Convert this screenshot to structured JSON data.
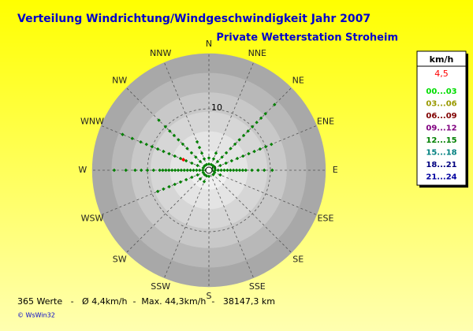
{
  "chart_data": {
    "type": "polar-scatter",
    "title": "Verteilung Windrichtung/Windgeschwindigkeit  Jahr 2007",
    "subtitle": "Private Wetterstation Stroheim",
    "categories": [
      "N",
      "NNE",
      "NE",
      "ENE",
      "E",
      "ESE",
      "SE",
      "SSE",
      "S",
      "SSW",
      "SW",
      "WSW",
      "W",
      "WNW",
      "NW",
      "NNW"
    ],
    "rlim": [
      0,
      19
    ],
    "rticks": [
      0,
      10
    ],
    "color": "#008000",
    "x": [
      90,
      90,
      90,
      90,
      90,
      90,
      90,
      90,
      90,
      90,
      90,
      90,
      90,
      90,
      90,
      90,
      270,
      270,
      270,
      270,
      270,
      270,
      270,
      270,
      270,
      270,
      270,
      270,
      270,
      270,
      270,
      270,
      270,
      270,
      270,
      270,
      270,
      270,
      292.5,
      292.5,
      292.5,
      292.5,
      292.5,
      292.5,
      292.5,
      292.5,
      292.5,
      292.5,
      292.5,
      292.5,
      292.5,
      292.5,
      315,
      315,
      315,
      315,
      315,
      315,
      315,
      315,
      315,
      315,
      315,
      67.5,
      67.5,
      67.5,
      67.5,
      67.5,
      67.5,
      67.5,
      67.5,
      67.5,
      67.5,
      67.5,
      45,
      45,
      45,
      45,
      45,
      45,
      45,
      45,
      45,
      45,
      45,
      45,
      45,
      45,
      22.5,
      22.5,
      22.5,
      337.5,
      337.5,
      337.5,
      337.5,
      337.5,
      0,
      0,
      247.5,
      247.5,
      247.5,
      247.5,
      247.5,
      247.5,
      247.5,
      247.5,
      247.5,
      112.5,
      112.5,
      202.5,
      202.5,
      180,
      225,
      225,
      135
    ],
    "values": [
      0.5,
      1,
      1.5,
      2,
      2.5,
      3,
      3.5,
      4,
      4.5,
      5,
      5.5,
      6,
      7,
      8,
      9,
      10.3,
      0.5,
      1,
      1.5,
      2,
      2.5,
      3,
      3.5,
      4,
      4.5,
      5,
      5.5,
      6,
      6.5,
      7,
      7.5,
      8,
      9,
      10,
      11,
      12,
      13.5,
      15.4,
      1,
      2,
      3,
      4,
      5,
      6,
      7,
      8,
      9,
      10,
      11,
      12,
      13.5,
      15.2,
      1,
      2,
      3,
      4,
      5,
      6,
      7,
      8,
      9,
      10,
      11.5,
      1,
      2,
      3,
      4,
      5,
      6,
      7,
      8,
      9,
      10,
      11,
      1,
      2,
      3,
      4,
      5,
      6,
      7,
      8,
      9,
      10,
      11,
      12,
      13,
      15.1,
      1,
      2,
      3,
      1,
      2,
      3,
      4,
      5,
      1,
      2,
      1,
      2,
      3,
      4,
      5,
      6,
      7,
      8,
      9,
      1,
      2,
      1,
      2,
      1,
      1,
      2,
      1
    ],
    "mean": {
      "value": 4.5,
      "label": "4,5",
      "direction": 292.5,
      "color": "#ff0000"
    },
    "legend_title": "km/h",
    "speed_classes": [
      {
        "name": "00...03",
        "color": "#00dd00"
      },
      {
        "name": "03...06",
        "color": "#999900"
      },
      {
        "name": "06...09",
        "color": "#800000"
      },
      {
        "name": "09...12",
        "color": "#800080"
      },
      {
        "name": "12...15",
        "color": "#008000"
      },
      {
        "name": "15...18",
        "color": "#008080"
      },
      {
        "name": "18...21",
        "color": "#000080"
      },
      {
        "name": "21...24",
        "color": "#0000a0"
      }
    ],
    "stats": "365 Werte   -   Ø 4,4km/h  -  Max. 44,3km/h  -   38147,3 km",
    "credit": "© WsWin32"
  }
}
